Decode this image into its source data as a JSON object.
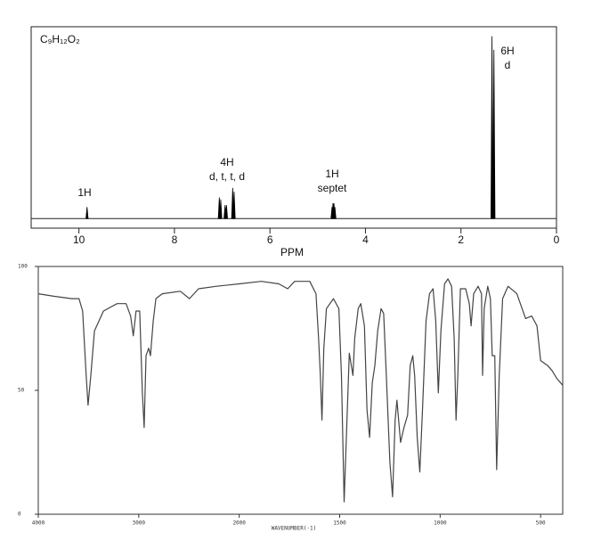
{
  "chart_data": [
    {
      "type": "stick",
      "title": "C₉H₁₂O₂",
      "x_label": "PPM",
      "x": [
        9.83,
        7.06,
        7.03,
        6.94,
        6.91,
        6.78,
        6.75,
        4.7,
        4.68,
        4.66,
        4.64,
        1.35,
        1.31
      ],
      "values": [
        6,
        11,
        10,
        7,
        7,
        16,
        14,
        6,
        8,
        8,
        6,
        95,
        88
      ],
      "xlim": [
        11,
        0
      ],
      "ylim": [
        -5,
        100
      ],
      "xticks": [
        10,
        8,
        6,
        4,
        2,
        0
      ],
      "annotations": [
        [
          "1H"
        ],
        [
          "4H",
          "d, t, t, d"
        ],
        [
          "1H",
          "septet"
        ],
        [
          "6H",
          "d"
        ]
      ],
      "color": "#000000"
    },
    {
      "type": "line",
      "x_label": "WAVENUMBER(-1)",
      "x": [
        4000,
        3847,
        3667,
        3595,
        3559,
        3523,
        3505,
        3477,
        3441,
        3351,
        3216,
        3126,
        3081,
        3054,
        3027,
        2991,
        2964,
        2946,
        2928,
        2901,
        2883,
        2856,
        2829,
        2766,
        2586,
        2495,
        2405,
        2225,
        2000,
        1890,
        1803,
        1759,
        1724,
        1649,
        1618,
        1605,
        1596,
        1588,
        1579,
        1566,
        1531,
        1504,
        1491,
        1478,
        1465,
        1452,
        1434,
        1425,
        1408,
        1395,
        1377,
        1364,
        1351,
        1338,
        1325,
        1311,
        1294,
        1281,
        1268,
        1250,
        1237,
        1224,
        1215,
        1197,
        1180,
        1162,
        1149,
        1136,
        1127,
        1114,
        1101,
        1088,
        1070,
        1053,
        1035,
        1022,
        1009,
        996,
        978,
        961,
        943,
        930,
        921,
        912,
        899,
        873,
        855,
        846,
        833,
        811,
        794,
        789,
        781,
        763,
        750,
        741,
        728,
        719,
        706,
        689,
        662,
        618,
        575,
        544,
        518,
        500,
        465,
        443,
        421,
        390
      ],
      "values": [
        89,
        88,
        87,
        87,
        82,
        56,
        44,
        56,
        74,
        82,
        85,
        85,
        80,
        72,
        82,
        82,
        49,
        35,
        64,
        67,
        64,
        78,
        87,
        89,
        90,
        87,
        91,
        92,
        93,
        94,
        93,
        91,
        94,
        94,
        89,
        71,
        56,
        38,
        67,
        83,
        87,
        83,
        56,
        5,
        35,
        65,
        56,
        71,
        83,
        85,
        76,
        42,
        31,
        53,
        60,
        74,
        83,
        81,
        56,
        21,
        7,
        38,
        46,
        29,
        35,
        40,
        60,
        64,
        56,
        31,
        17,
        42,
        78,
        89,
        91,
        78,
        49,
        74,
        93,
        95,
        92,
        71,
        38,
        56,
        91,
        91,
        85,
        76,
        89,
        92,
        89,
        56,
        83,
        92,
        87,
        64,
        64,
        18,
        56,
        87,
        92,
        89,
        79,
        80,
        76,
        62,
        60,
        58,
        55,
        52
      ],
      "xlim": [
        4000,
        390
      ],
      "ylim": [
        0,
        100
      ],
      "xticks": [
        4000,
        3000,
        2000,
        1500,
        1000,
        500
      ],
      "yticks": [
        100,
        50,
        0
      ],
      "color": "#444444"
    }
  ]
}
